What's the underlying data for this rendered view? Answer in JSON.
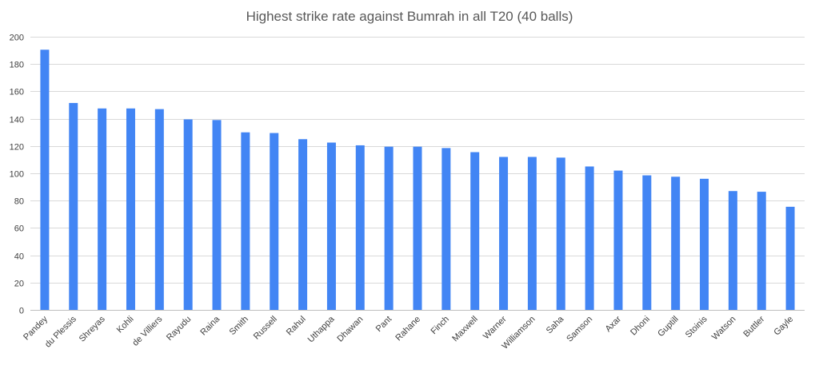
{
  "chart_data": {
    "type": "bar",
    "title": "Highest strike rate against Bumrah in all T20 (40 balls)",
    "xlabel": "",
    "ylabel": "",
    "ylim": [
      0,
      200
    ],
    "yticks": [
      0,
      20,
      40,
      60,
      80,
      100,
      120,
      140,
      160,
      180,
      200
    ],
    "grid": true,
    "legend": "none",
    "bar_color": "#4285f4",
    "categories": [
      "Pandey",
      "du Plessis",
      "Shreyas",
      "Kohli",
      "de Villiers",
      "Rayudu",
      "Raina",
      "Smith",
      "Russell",
      "Rahul",
      "Uthappa",
      "Dhawan",
      "Pant",
      "Rahane",
      "Finch",
      "Maxwell",
      "Warner",
      "Williamson",
      "Saha",
      "Samson",
      "Axar",
      "Dhoni",
      "Guptill",
      "Stoinis",
      "Watson",
      "Buttler",
      "Gayle"
    ],
    "values": [
      190.5,
      151.5,
      147.5,
      147.5,
      147,
      139.5,
      139,
      130,
      129.5,
      125,
      122.5,
      120.5,
      119.5,
      119.5,
      118.5,
      115.5,
      112,
      112,
      111.5,
      105,
      102,
      98.5,
      97.5,
      96,
      87,
      86.5,
      75.5
    ]
  }
}
